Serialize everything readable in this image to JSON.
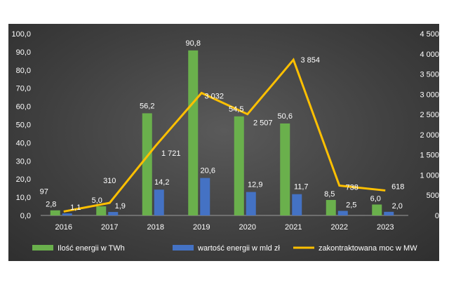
{
  "chart_data": {
    "type": "bar",
    "categories": [
      "2016",
      "2017",
      "2018",
      "2019",
      "2020",
      "2021",
      "2022",
      "2023"
    ],
    "series": [
      {
        "name": "Ilość energii w TWh",
        "axis": "left",
        "kind": "bar",
        "color": "#6ab04c",
        "values": [
          2.8,
          5.0,
          56.2,
          90.8,
          54.5,
          50.6,
          8.5,
          6.0
        ],
        "labels": [
          "2,8",
          "5,0",
          "56,2",
          "90,8",
          "54,5",
          "50,6",
          "8,5",
          "6,0"
        ]
      },
      {
        "name": "wartość energii w mld zł",
        "axis": "left",
        "kind": "bar",
        "color": "#4472c4",
        "values": [
          1.1,
          1.9,
          14.2,
          20.6,
          12.9,
          11.7,
          2.5,
          2.0
        ],
        "labels": [
          "1,1",
          "1,9",
          "14,2",
          "20,6",
          "12,9",
          "11,7",
          "2,5",
          "2,0"
        ]
      },
      {
        "name": "zakontraktowana moc w MW",
        "axis": "right",
        "kind": "line",
        "color": "#ffc000",
        "values": [
          97,
          310,
          1721,
          3032,
          2507,
          3854,
          738,
          618
        ],
        "labels": [
          "97",
          "310",
          "1 721",
          "3 032",
          "2 507",
          "3 854",
          "738",
          "618"
        ]
      }
    ],
    "left_axis": {
      "range": [
        0,
        100
      ],
      "ticks": [
        "0,0",
        "10,0",
        "20,0",
        "30,0",
        "40,0",
        "50,0",
        "60,0",
        "70,0",
        "80,0",
        "90,0",
        "100,0"
      ]
    },
    "right_axis": {
      "range": [
        0,
        4500
      ],
      "ticks": [
        "0",
        "500",
        "1 000",
        "1 500",
        "2 000",
        "2 500",
        "3 000",
        "3 500",
        "4 000",
        "4 500"
      ]
    },
    "grid": false,
    "legend_position": "bottom"
  }
}
